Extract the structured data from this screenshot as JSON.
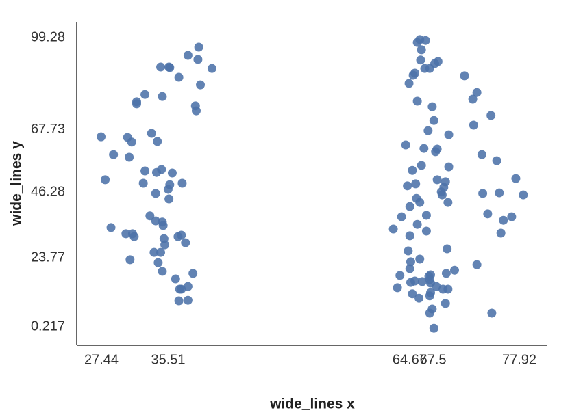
{
  "chart_data": {
    "type": "scatter",
    "x_label": "wide_lines x",
    "y_label": "wide_lines y",
    "color": "#4c72a8",
    "xlim": [
      24.46,
      81.23
    ],
    "ylim": [
      -6.11,
      104.67
    ],
    "xticks": [
      27.44,
      35.51,
      64.67,
      67.5,
      77.92
    ],
    "yticks": [
      0.217,
      23.77,
      46.28,
      67.73,
      99.28
    ],
    "x": [
      39.2,
      37.9,
      39.1,
      40.8,
      34.6,
      35.6,
      35.7,
      36.8,
      39.4,
      32.7,
      34.8,
      31.7,
      31.7,
      38.8,
      38.9,
      27.4,
      33.5,
      30.6,
      31.1,
      34.2,
      28.9,
      30.8,
      32.7,
      34.7,
      34.1,
      36.0,
      27.9,
      32.5,
      35.7,
      37.2,
      35.5,
      34.0,
      35.6,
      33.3,
      34.0,
      34.8,
      34.9,
      28.6,
      30.4,
      31.2,
      31.4,
      37.1,
      36.7,
      35.0,
      35.1,
      37.6,
      30.9,
      33.8,
      34.6,
      34.3,
      34.8,
      38.5,
      36.4,
      37.9,
      36.9,
      37.1,
      36.8,
      37.9,
      65.9,
      66.6,
      65.6,
      66.1,
      66.0,
      68.1,
      67.7,
      66.5,
      67.1,
      65.3,
      65.1,
      64.6,
      71.3,
      72.8,
      72.3,
      65.6,
      67.4,
      67.6,
      74.5,
      72.4,
      66.9,
      69.4,
      64.2,
      66.4,
      67.8,
      68.0,
      73.4,
      75.2,
      66.1,
      69.4,
      65.0,
      77.5,
      68.0,
      69.0,
      64.4,
      65.4,
      68.8,
      68.5,
      68.6,
      73.5,
      75.5,
      78.4,
      65.5,
      65.9,
      69.3,
      64.7,
      63.7,
      74.1,
      66.7,
      77.0,
      76.0,
      65.6,
      62.7,
      66.7,
      64.7,
      75.7,
      69.2,
      64.5,
      65.9,
      64.8,
      72.8,
      70.1,
      64.7,
      63.5,
      67.2,
      69.1,
      67.0,
      67.1,
      64.8,
      65.3,
      66.2,
      63.2,
      67.2,
      67.9,
      69.3,
      68.7,
      65.0,
      67.2,
      65.8,
      67.1,
      69.0,
      67.4,
      67.1,
      74.6,
      67.6
    ],
    "values": [
      96.0,
      93.2,
      91.8,
      88.7,
      89.2,
      89.2,
      89.0,
      85.7,
      83.1,
      79.8,
      79.1,
      77.3,
      76.6,
      75.9,
      74.2,
      65.3,
      66.5,
      65.1,
      63.5,
      63.7,
      59.2,
      58.3,
      53.6,
      54.1,
      53.1,
      52.9,
      50.6,
      49.4,
      48.9,
      49.4,
      47.3,
      45.9,
      44.0,
      38.2,
      36.5,
      36.1,
      34.9,
      34.2,
      32.1,
      32.1,
      31.1,
      31.6,
      31.1,
      30.4,
      28.3,
      29.0,
      23.2,
      25.7,
      25.7,
      22.2,
      19.2,
      18.5,
      16.6,
      14.0,
      13.1,
      13.1,
      9.1,
      9.3,
      98.6,
      98.3,
      97.6,
      95.1,
      91.6,
      91.1,
      90.4,
      88.7,
      88.7,
      87.1,
      86.4,
      83.6,
      86.2,
      80.5,
      78.2,
      77.5,
      75.6,
      70.9,
      72.6,
      69.3,
      67.4,
      66.0,
      62.5,
      61.3,
      60.2,
      61.1,
      59.2,
      57.1,
      55.5,
      55.0,
      53.8,
      51.0,
      50.6,
      49.9,
      48.5,
      49.2,
      48.0,
      46.4,
      45.4,
      45.9,
      46.1,
      45.4,
      44.2,
      42.8,
      42.8,
      41.4,
      37.9,
      38.9,
      38.4,
      37.9,
      36.7,
      35.3,
      33.7,
      33.0,
      31.4,
      32.3,
      26.9,
      26.2,
      23.4,
      22.5,
      21.5,
      19.6,
      20.1,
      17.8,
      18.0,
      18.5,
      17.5,
      16.4,
      15.4,
      15.9,
      15.7,
      13.6,
      15.2,
      14.0,
      13.1,
      13.1,
      11.5,
      11.9,
      10.0,
      10.8,
      8.2,
      6.3,
      4.9,
      4.9,
      -0.3
    ]
  }
}
